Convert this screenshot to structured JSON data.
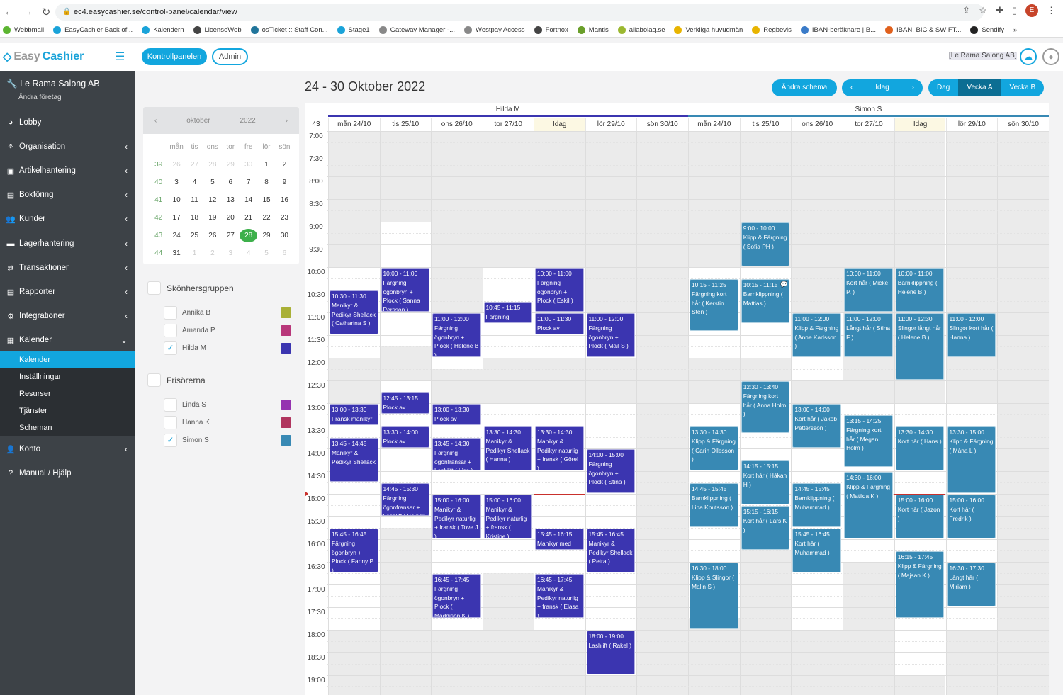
{
  "browser": {
    "url": "ec4.easycashier.se/control-panel/calendar/view",
    "profile_initial": "E",
    "bookmarks": [
      {
        "label": "Webbmail",
        "color": "#5cb531"
      },
      {
        "label": "EasyCashier Back of...",
        "color": "#1aa3d9"
      },
      {
        "label": "Kalendern",
        "color": "#1aa3d9"
      },
      {
        "label": "LicenseWeb",
        "color": "#444"
      },
      {
        "label": "osTicket :: Staff Con...",
        "color": "#21759b"
      },
      {
        "label": "Stage1",
        "color": "#1aa3d9"
      },
      {
        "label": "Gateway Manager -...",
        "color": "#888"
      },
      {
        "label": "Westpay Access",
        "color": "#888"
      },
      {
        "label": "Fortnox",
        "color": "#444"
      },
      {
        "label": "Mantis",
        "color": "#6a9f2a"
      },
      {
        "label": "allabolag.se",
        "color": "#9bb830"
      },
      {
        "label": "Verkliga huvudmän",
        "color": "#e8b400"
      },
      {
        "label": "Regbevis",
        "color": "#e8b400"
      },
      {
        "label": "IBAN-beräknare | B...",
        "color": "#3a7bc8"
      },
      {
        "label": "IBAN, BIC & SWIFT...",
        "color": "#e0601c"
      },
      {
        "label": "Sendify",
        "color": "#222"
      }
    ]
  },
  "header": {
    "logo_a": "Easy",
    "logo_b": "Cashier",
    "btn_control": "Kontrollpanelen",
    "btn_admin": "Admin",
    "company": "[Le Rama Salong AB]"
  },
  "sidebar": {
    "company": "Le Rama Salong AB",
    "change": "Ändra företag",
    "items": [
      {
        "label": "Lobby",
        "icon": "dashboard-icon"
      },
      {
        "label": "Organisation",
        "icon": "sitemap-icon"
      },
      {
        "label": "Artikelhantering",
        "icon": "money-icon"
      },
      {
        "label": "Bokföring",
        "icon": "book-icon"
      },
      {
        "label": "Kunder",
        "icon": "users-icon"
      },
      {
        "label": "Lagerhantering",
        "icon": "archive-icon"
      },
      {
        "label": "Transaktioner",
        "icon": "exchange-icon"
      },
      {
        "label": "Rapporter",
        "icon": "book-icon"
      },
      {
        "label": "Integrationer",
        "icon": "cogs-icon"
      },
      {
        "label": "Kalender",
        "icon": "calendar-icon"
      }
    ],
    "sub": [
      "Kalender",
      "Inställningar",
      "Resurser",
      "Tjänster",
      "Scheman"
    ],
    "bottom": [
      {
        "label": "Konto",
        "icon": "user-icon"
      },
      {
        "label": "Manual / Hjälp",
        "icon": "question-icon"
      }
    ]
  },
  "mini": {
    "month": "oktober",
    "year": "2022",
    "days": [
      "mån",
      "tis",
      "ons",
      "tor",
      "fre",
      "lör",
      "sön"
    ],
    "weeks": [
      {
        "w": "39",
        "d": [
          "26",
          "27",
          "28",
          "29",
          "30",
          "1",
          "2"
        ],
        "om": [
          0,
          1,
          2,
          3,
          4
        ]
      },
      {
        "w": "40",
        "d": [
          "3",
          "4",
          "5",
          "6",
          "7",
          "8",
          "9"
        ],
        "om": []
      },
      {
        "w": "41",
        "d": [
          "10",
          "11",
          "12",
          "13",
          "14",
          "15",
          "16"
        ],
        "om": []
      },
      {
        "w": "42",
        "d": [
          "17",
          "18",
          "19",
          "20",
          "21",
          "22",
          "23"
        ],
        "om": []
      },
      {
        "w": "43",
        "d": [
          "24",
          "25",
          "26",
          "27",
          "28",
          "29",
          "30"
        ],
        "om": [],
        "today": 4
      },
      {
        "w": "44",
        "d": [
          "31",
          "1",
          "2",
          "3",
          "4",
          "5",
          "6"
        ],
        "om": [
          1,
          2,
          3,
          4,
          5,
          6
        ]
      }
    ]
  },
  "groups": [
    {
      "name": "Skönhersgruppen",
      "checked": false,
      "resources": [
        {
          "name": "Annika B",
          "checked": false,
          "color": "#a9b036"
        },
        {
          "name": "Amanda P",
          "checked": false,
          "color": "#b8377a"
        },
        {
          "name": "Hilda M",
          "checked": true,
          "color": "#3b35b0"
        }
      ]
    },
    {
      "name": "Frisörerna",
      "checked": false,
      "resources": [
        {
          "name": "Linda S",
          "checked": false,
          "color": "#9533b0"
        },
        {
          "name": "Hanna K",
          "checked": false,
          "color": "#b0355e"
        },
        {
          "name": "Simon S",
          "checked": true,
          "color": "#3889b4"
        }
      ]
    }
  ],
  "calendar": {
    "title": "24 - 30 Oktober 2022",
    "btn_change": "Ändra schema",
    "btn_today": "Idag",
    "views": [
      "Dag",
      "Vecka A",
      "Vecka B"
    ],
    "active_view": "Vecka A",
    "week": "43",
    "times": [
      "7:00",
      "7:30",
      "8:00",
      "8:30",
      "9:00",
      "9:30",
      "10:00",
      "10:30",
      "11:00",
      "11:30",
      "12:00",
      "12:30",
      "13:00",
      "13:30",
      "14:00",
      "14:30",
      "15:00",
      "15:30",
      "16:00",
      "16:30",
      "17:00",
      "17:30",
      "18:00",
      "18:30",
      "19:00"
    ],
    "days": [
      "mån 24/10",
      "tis 25/10",
      "ons 26/10",
      "tor 27/10",
      "Idag",
      "lör 29/10",
      "sön 30/10"
    ],
    "today_index": 4,
    "now": "15:00",
    "resources": [
      {
        "name": "Hilda M",
        "color": "#3b35b0",
        "open": [
          [
            [
              "10:00",
              "12:00"
            ],
            [
              "13:00",
              "18:00"
            ]
          ],
          [
            [
              "9:00",
              "11:45"
            ],
            [
              "12:30",
              "15:45"
            ]
          ],
          [
            [
              "11:00",
              "12:15"
            ],
            [
              "13:00",
              "18:00"
            ]
          ],
          [
            [
              "10:00",
              "12:00"
            ],
            [
              "13:00",
              "16:45"
            ]
          ],
          [
            [
              "10:00",
              "12:00"
            ],
            [
              "13:00",
              "18:00"
            ]
          ],
          [
            [
              "11:00",
              "12:00"
            ],
            [
              "13:00",
              "19:00"
            ]
          ],
          []
        ],
        "events": [
          {
            "day": 0,
            "start": "10:30",
            "end": "11:30",
            "text": "Manikyr & Pedikyr Shellack ( Catharina S )"
          },
          {
            "day": 0,
            "start": "13:00",
            "end": "13:30",
            "text": "Fransk manikyr"
          },
          {
            "day": 0,
            "start": "13:45",
            "end": "14:45",
            "text": "Manikyr & Pedikyr Shellack"
          },
          {
            "day": 0,
            "start": "15:45",
            "end": "16:45",
            "text": "Färgning ögonbryn + Plock ( Fanny P )"
          },
          {
            "day": 1,
            "start": "10:00",
            "end": "11:00",
            "text": "Färgning ögonbryn + Plock ( Sanna Persson )"
          },
          {
            "day": 1,
            "start": "12:45",
            "end": "13:15",
            "text": "Plock av"
          },
          {
            "day": 1,
            "start": "13:30",
            "end": "14:00",
            "text": "Plock av"
          },
          {
            "day": 1,
            "start": "14:45",
            "end": "15:30",
            "text": "Färgning ögonfransar + Lashlift ( Seinon )"
          },
          {
            "day": 2,
            "start": "11:00",
            "end": "12:00",
            "text": "Färgning ögonbryn + Plock ( Helene B )"
          },
          {
            "day": 2,
            "start": "13:00",
            "end": "13:30",
            "text": "Plock av"
          },
          {
            "day": 2,
            "start": "13:45",
            "end": "14:30",
            "text": "Färgning ögonfransar + Lashlift ( Lisa )"
          },
          {
            "day": 2,
            "start": "15:00",
            "end": "16:00",
            "text": "Manikyr & Pedikyr naturlig + fransk ( Tove J )"
          },
          {
            "day": 2,
            "start": "16:45",
            "end": "17:45",
            "text": "Färgning ögonbryn + Plock ( Maddison K )"
          },
          {
            "day": 3,
            "start": "10:45",
            "end": "11:15",
            "text": "Färgning"
          },
          {
            "day": 3,
            "start": "13:30",
            "end": "14:30",
            "text": "Manikyr & Pedikyr Shellack ( Hanna )"
          },
          {
            "day": 3,
            "start": "15:00",
            "end": "16:00",
            "text": "Manikyr & Pedikyr naturlig + fransk ( Kristine )"
          },
          {
            "day": 4,
            "start": "10:00",
            "end": "11:00",
            "text": "Färgning ögonbryn + Plock ( Eskil )"
          },
          {
            "day": 4,
            "start": "11:00",
            "end": "11:30",
            "text": "Plock av"
          },
          {
            "day": 4,
            "start": "13:30",
            "end": "14:30",
            "text": "Manikyr & Pedikyr naturlig + fransk ( Görel )"
          },
          {
            "day": 4,
            "start": "15:45",
            "end": "16:15",
            "text": "Manikyr med"
          },
          {
            "day": 4,
            "start": "16:45",
            "end": "17:45",
            "text": "Manikyr & Pedikyr naturlig + fransk ( Elasa )"
          },
          {
            "day": 5,
            "start": "11:00",
            "end": "12:00",
            "text": "Färgning ögonbryn + Plock ( Mail S )"
          },
          {
            "day": 5,
            "start": "14:00",
            "end": "15:00",
            "text": "Färgning ögonbryn + Plock ( Stina )"
          },
          {
            "day": 5,
            "start": "15:45",
            "end": "16:45",
            "text": "Manikyr & Pedikyr Shellack ( Petra )"
          },
          {
            "day": 5,
            "start": "18:00",
            "end": "19:00",
            "text": "Lashlift ( Rakel )"
          }
        ]
      },
      {
        "name": "Simon S",
        "color": "#3889b4",
        "open": [
          [
            [
              "10:00",
              "12:00"
            ],
            [
              "13:00",
              "17:45"
            ]
          ],
          [
            [
              "10:00",
              "12:00"
            ],
            [
              "12:30",
              "16:15"
            ]
          ],
          [
            [
              "11:00",
              "12:30"
            ],
            [
              "13:00",
              "18:00"
            ]
          ],
          [
            [
              "13:00",
              "16:30"
            ]
          ],
          [
            [
              "13:00",
              "19:00"
            ]
          ],
          [
            [
              "13:00",
              "18:00"
            ]
          ],
          []
        ],
        "events": [
          {
            "day": 0,
            "start": "10:15",
            "end": "11:25",
            "text": "Färgning kort hår ( Kerstin Sten )"
          },
          {
            "day": 0,
            "start": "13:30",
            "end": "14:30",
            "text": "Klipp & Färgning ( Carin Ollesson )"
          },
          {
            "day": 0,
            "start": "14:45",
            "end": "15:45",
            "text": "Barnklippning ( Lina Knutsson )"
          },
          {
            "day": 0,
            "start": "16:30",
            "end": "18:00",
            "text": "Klipp & Slingor ( Malin S )"
          },
          {
            "day": 1,
            "start": "9:00",
            "end": "10:00",
            "text": "Klipp & Färgning ( Sofia PH )"
          },
          {
            "day": 1,
            "start": "10:15",
            "end": "11:15",
            "text": "Barnklippning ( Mattias )",
            "comment": true
          },
          {
            "day": 1,
            "start": "12:30",
            "end": "13:40",
            "text": "Färgning kort hår ( Anna Holm )"
          },
          {
            "day": 1,
            "start": "14:15",
            "end": "15:15",
            "text": "Kort hår ( Håkan H )"
          },
          {
            "day": 1,
            "start": "15:15",
            "end": "16:15",
            "text": "Kort hår ( Lars K )"
          },
          {
            "day": 2,
            "start": "11:00",
            "end": "12:00",
            "text": "Klipp & Färgning ( Anne Karlsson )"
          },
          {
            "day": 2,
            "start": "13:00",
            "end": "14:00",
            "text": "Kort hår ( Jakob Pettersson )"
          },
          {
            "day": 2,
            "start": "14:45",
            "end": "15:45",
            "text": "Barnklippning ( Muhammad )"
          },
          {
            "day": 2,
            "start": "15:45",
            "end": "16:45",
            "text": "Kort hår ( Muhammad )"
          },
          {
            "day": 3,
            "start": "10:00",
            "end": "11:00",
            "text": "Kort hår ( Micke P. )"
          },
          {
            "day": 3,
            "start": "11:00",
            "end": "12:00",
            "text": "Långt hår ( Stina F )"
          },
          {
            "day": 3,
            "start": "13:15",
            "end": "14:25",
            "text": "Färgning kort hår ( Megan Holm )"
          },
          {
            "day": 3,
            "start": "14:30",
            "end": "16:00",
            "text": "Klipp & Färgning ( Matilda K )"
          },
          {
            "day": 4,
            "start": "10:00",
            "end": "11:00",
            "text": "Barnklippning ( Helene B )"
          },
          {
            "day": 4,
            "start": "11:00",
            "end": "12:30",
            "text": "Slingor långt hår ( Helene B )"
          },
          {
            "day": 4,
            "start": "13:30",
            "end": "14:30",
            "text": "Kort hår ( Hans )"
          },
          {
            "day": 4,
            "start": "15:00",
            "end": "16:00",
            "text": "Kort hår ( Jazon )"
          },
          {
            "day": 4,
            "start": "16:15",
            "end": "17:45",
            "text": "Klipp & Färgning ( Majsan K )"
          },
          {
            "day": 5,
            "start": "11:00",
            "end": "12:00",
            "text": "Slingor kort hår ( Hanna )"
          },
          {
            "day": 5,
            "start": "13:30",
            "end": "15:00",
            "text": "Klipp & Färgning ( Måna L )"
          },
          {
            "day": 5,
            "start": "15:00",
            "end": "16:00",
            "text": "Kort hår ( Fredrik )"
          },
          {
            "day": 5,
            "start": "16:30",
            "end": "17:30",
            "text": "Långt hår ( Miriam )"
          }
        ]
      }
    ]
  }
}
